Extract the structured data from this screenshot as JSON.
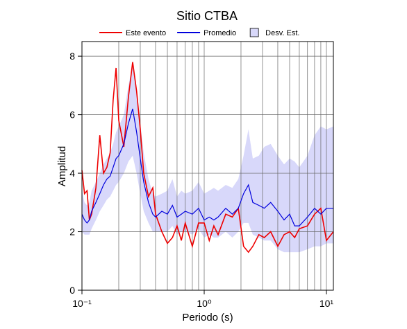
{
  "chart_data": {
    "type": "line",
    "title": "Sitio CTBA",
    "xlabel": "Periodo (s)",
    "ylabel": "Amplitud",
    "xscale": "log",
    "xlim": [
      0.1,
      11.4
    ],
    "ylim": [
      0,
      8.5
    ],
    "xticks": [
      {
        "value": 0.1,
        "label": "10⁻¹"
      },
      {
        "value": 1,
        "label": "10⁰"
      },
      {
        "value": 10,
        "label": "10¹"
      }
    ],
    "xminorticks": [
      0.2,
      0.3,
      0.4,
      0.5,
      0.6,
      0.7,
      0.8,
      0.9,
      2,
      3,
      4,
      5,
      6,
      7,
      8,
      9
    ],
    "yticks": [
      0,
      2,
      4,
      6,
      8
    ],
    "grid": true,
    "x": [
      0.1,
      0.105,
      0.11,
      0.115,
      0.12,
      0.13,
      0.14,
      0.15,
      0.16,
      0.17,
      0.18,
      0.19,
      0.2,
      0.22,
      0.24,
      0.26,
      0.28,
      0.3,
      0.32,
      0.35,
      0.38,
      0.4,
      0.45,
      0.5,
      0.55,
      0.6,
      0.65,
      0.7,
      0.8,
      0.9,
      1.0,
      1.1,
      1.2,
      1.3,
      1.5,
      1.7,
      1.9,
      2.1,
      2.3,
      2.5,
      2.8,
      3.1,
      3.5,
      4,
      4.5,
      5,
      5.5,
      6,
      7,
      8,
      9,
      10,
      11.4
    ],
    "band": {
      "name": "Desv. Est.",
      "color": "#d8d8fa",
      "lower": [
        2.0,
        1.9,
        1.9,
        1.9,
        2.1,
        2.4,
        2.7,
        2.9,
        3.1,
        3.2,
        3.4,
        3.6,
        3.7,
        4.0,
        4.4,
        4.6,
        4.0,
        3.3,
        2.7,
        2.3,
        2.0,
        2.0,
        2.0,
        2.0,
        2.2,
        1.9,
        2.0,
        2.0,
        1.9,
        2.1,
        1.8,
        1.9,
        1.8,
        1.8,
        2.0,
        1.8,
        2.0,
        2.3,
        2.3,
        1.9,
        1.8,
        1.7,
        1.7,
        1.4,
        1.3,
        1.3,
        1.3,
        1.3,
        1.4,
        1.5,
        1.5,
        1.6,
        1.6
      ],
      "upper": [
        3.4,
        3.0,
        2.9,
        3.0,
        3.4,
        3.7,
        4.0,
        4.3,
        4.5,
        4.7,
        5.0,
        5.4,
        5.6,
        6.0,
        7.0,
        7.7,
        6.8,
        5.7,
        4.7,
        3.8,
        3.3,
        3.2,
        3.3,
        3.4,
        3.8,
        3.2,
        3.4,
        3.3,
        3.4,
        3.7,
        3.3,
        3.4,
        3.5,
        3.4,
        3.6,
        3.5,
        3.8,
        4.6,
        5.5,
        4.5,
        4.6,
        4.9,
        5.0,
        4.6,
        4.3,
        4.5,
        4.4,
        4.2,
        4.6,
        5.3,
        5.6,
        5.5,
        5.6
      ]
    },
    "series": [
      {
        "name": "Este evento",
        "color": "#ee0000",
        "values": [
          4.1,
          3.3,
          3.4,
          2.4,
          2.6,
          3.5,
          5.3,
          4.0,
          4.2,
          4.7,
          6.5,
          7.6,
          5.8,
          4.9,
          6.6,
          7.8,
          6.8,
          5.5,
          4.0,
          3.2,
          3.5,
          2.6,
          2.0,
          1.6,
          1.8,
          2.2,
          1.7,
          2.3,
          1.5,
          2.3,
          2.3,
          1.7,
          2.2,
          1.9,
          2.6,
          2.5,
          2.8,
          1.5,
          1.3,
          1.5,
          1.9,
          1.8,
          2.0,
          1.5,
          1.9,
          2.0,
          1.8,
          2.1,
          2.2,
          2.6,
          2.8,
          1.7,
          2.0
        ]
      },
      {
        "name": "Promedio",
        "color": "#0000dd",
        "values": [
          2.6,
          2.4,
          2.3,
          2.4,
          2.7,
          3.0,
          3.3,
          3.6,
          3.8,
          3.9,
          4.2,
          4.5,
          4.6,
          5.0,
          5.7,
          6.2,
          5.4,
          4.5,
          3.7,
          3.0,
          2.6,
          2.5,
          2.7,
          2.6,
          2.9,
          2.5,
          2.6,
          2.7,
          2.6,
          2.8,
          2.4,
          2.5,
          2.4,
          2.5,
          2.8,
          2.6,
          2.8,
          3.3,
          3.6,
          3.0,
          2.9,
          2.8,
          3.0,
          2.7,
          2.4,
          2.6,
          2.2,
          2.2,
          2.5,
          2.8,
          2.6,
          2.8,
          2.8
        ]
      }
    ]
  }
}
